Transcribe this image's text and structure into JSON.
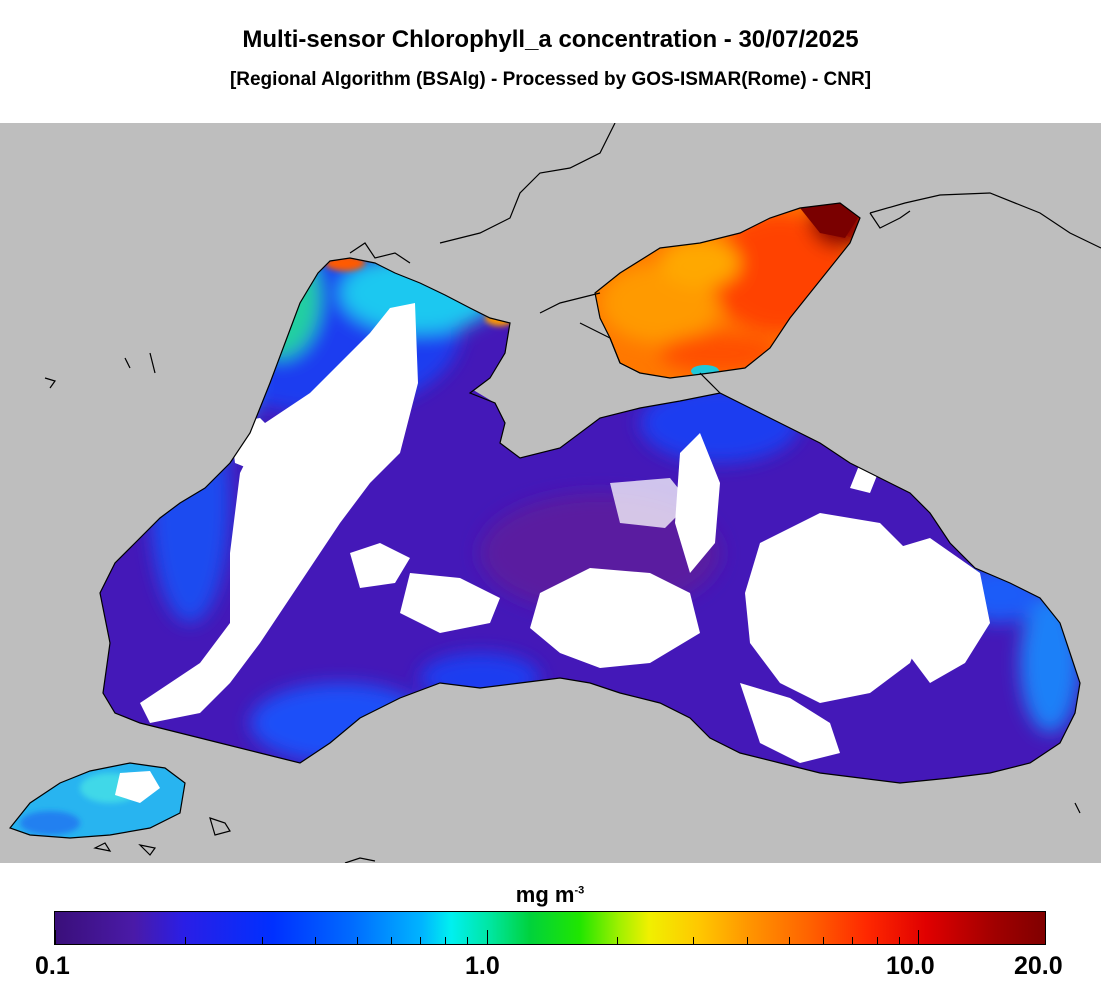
{
  "title": "Multi-sensor Chlorophyll_a concentration - 30/07/2025",
  "subtitle": "[Regional Algorithm (BSAlg) - Processed by GOS-ISMAR(Rome) - CNR]",
  "colorbar": {
    "units_main": "mg m",
    "units_exp": "-3",
    "labels": [
      "0.1",
      "1.0",
      "10.0",
      "20.0"
    ],
    "min_value": 0.1,
    "max_value": 20.0,
    "scale": "log"
  },
  "colors": {
    "land": "#bebebe",
    "no_data": "#ffffff",
    "coastline": "#000000"
  }
}
